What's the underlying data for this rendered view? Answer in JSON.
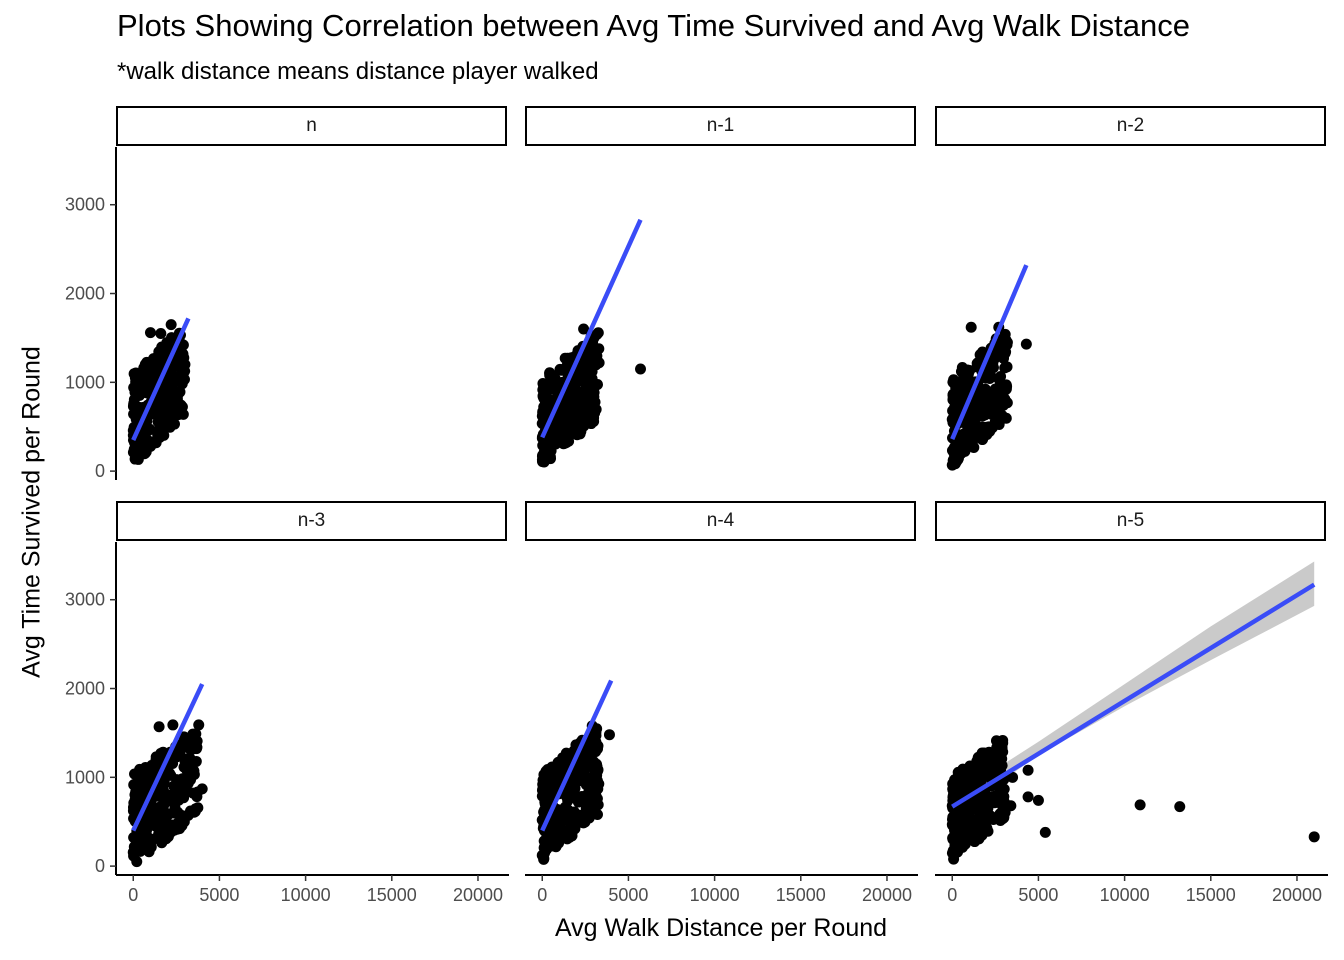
{
  "chart_data": {
    "type": "scatter",
    "title": "Plots Showing Correlation between Avg Time Survived and Avg Walk Distance",
    "subtitle": "*walk distance means distance player walked",
    "xlabel": "Avg Walk Distance per Round",
    "ylabel": "Avg Time Survived per Round",
    "xlim": [
      -1000,
      21800
    ],
    "ylim": [
      -100,
      3650
    ],
    "x_ticks": [
      0,
      5000,
      10000,
      15000,
      20000
    ],
    "y_ticks": [
      0,
      1000,
      2000,
      3000
    ],
    "point_color": "#000000",
    "fit_color": "#3a4cf7",
    "ci_color": "#bdbdbd",
    "panels": [
      {
        "name": "n",
        "fit": {
          "x": [
            0,
            3200
          ],
          "y": [
            350,
            1720
          ]
        },
        "cluster": {
          "x_max": 3000,
          "y_min": 70,
          "y_max": 1650
        },
        "outliers": [
          [
            2200,
            1650
          ],
          [
            1000,
            1560
          ],
          [
            1600,
            1550
          ],
          [
            3000,
            1200
          ],
          [
            2700,
            1250
          ]
        ]
      },
      {
        "name": "n-1",
        "fit": {
          "x": [
            0,
            5700
          ],
          "y": [
            380,
            2830
          ]
        },
        "cluster": {
          "x_max": 3300,
          "y_min": 60,
          "y_max": 1600
        },
        "outliers": [
          [
            5700,
            1150
          ],
          [
            3300,
            1220
          ],
          [
            2400,
            1600
          ],
          [
            3000,
            1500
          ]
        ]
      },
      {
        "name": "n-2",
        "fit": {
          "x": [
            0,
            4300
          ],
          "y": [
            360,
            2320
          ]
        },
        "cluster": {
          "x_max": 3200,
          "y_min": 50,
          "y_max": 1620
        },
        "outliers": [
          [
            4300,
            1430
          ],
          [
            1100,
            1620
          ],
          [
            2700,
            1620
          ],
          [
            3200,
            1450
          ]
        ]
      },
      {
        "name": "n-3",
        "fit": {
          "x": [
            0,
            4000
          ],
          "y": [
            400,
            2050
          ]
        },
        "cluster": {
          "x_max": 3800,
          "y_min": 20,
          "y_max": 1590
        },
        "outliers": [
          [
            4000,
            870
          ],
          [
            3800,
            1590
          ],
          [
            1500,
            1570
          ],
          [
            2300,
            1590
          ]
        ]
      },
      {
        "name": "n-4",
        "fit": {
          "x": [
            0,
            4000
          ],
          "y": [
            400,
            2090
          ]
        },
        "cluster": {
          "x_max": 3300,
          "y_min": 60,
          "y_max": 1580
        },
        "outliers": [
          [
            3900,
            1480
          ],
          [
            3200,
            760
          ],
          [
            2900,
            1580
          ]
        ]
      },
      {
        "name": "n-5",
        "fit": {
          "x": [
            0,
            21000
          ],
          "y": [
            670,
            3170
          ]
        },
        "ci": {
          "x": [
            0,
            5000,
            10000,
            15000,
            21000
          ],
          "low": [
            560,
            1250,
            1800,
            2320,
            2930
          ],
          "high": [
            780,
            1400,
            2050,
            2700,
            3430
          ]
        },
        "cluster": {
          "x_max": 3100,
          "y_min": 50,
          "y_max": 1500
        },
        "outliers": [
          [
            21000,
            330
          ],
          [
            13200,
            670
          ],
          [
            10900,
            690
          ],
          [
            5400,
            380
          ],
          [
            5000,
            740
          ],
          [
            4400,
            780
          ],
          [
            4400,
            1080
          ],
          [
            3400,
            680
          ],
          [
            3500,
            1000
          ],
          [
            2800,
            1080
          ]
        ]
      }
    ]
  }
}
